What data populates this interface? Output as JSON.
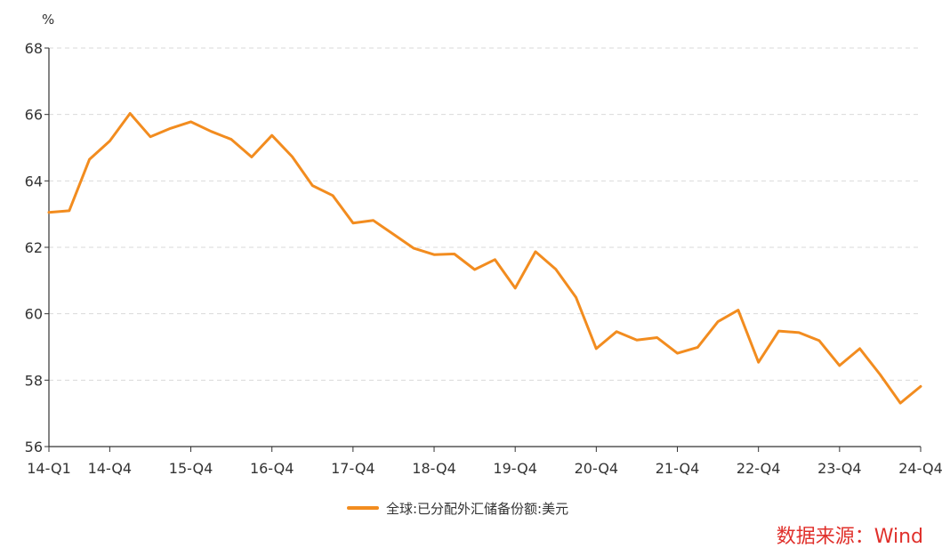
{
  "chart_data": {
    "type": "line",
    "y_unit": "%",
    "ylim": [
      56,
      68
    ],
    "y_ticks": [
      56,
      58,
      60,
      62,
      64,
      66,
      68
    ],
    "x_tick_labels": [
      "14-Q1",
      "14-Q4",
      "15-Q4",
      "16-Q4",
      "17-Q4",
      "18-Q4",
      "19-Q4",
      "20-Q4",
      "21-Q4",
      "22-Q4",
      "23-Q4",
      "24-Q4"
    ],
    "x_tick_indices": [
      0,
      3,
      7,
      11,
      15,
      19,
      23,
      27,
      31,
      35,
      39,
      43
    ],
    "x": [
      "14-Q1",
      "14-Q2",
      "14-Q3",
      "14-Q4",
      "15-Q1",
      "15-Q2",
      "15-Q3",
      "15-Q4",
      "16-Q1",
      "16-Q2",
      "16-Q3",
      "16-Q4",
      "17-Q1",
      "17-Q2",
      "17-Q3",
      "17-Q4",
      "18-Q1",
      "18-Q2",
      "18-Q3",
      "18-Q4",
      "19-Q1",
      "19-Q2",
      "19-Q3",
      "19-Q4",
      "20-Q1",
      "20-Q2",
      "20-Q3",
      "20-Q4",
      "21-Q1",
      "21-Q2",
      "21-Q3",
      "21-Q4",
      "22-Q1",
      "22-Q2",
      "22-Q3",
      "22-Q4",
      "23-Q1",
      "23-Q2",
      "23-Q3",
      "23-Q4",
      "24-Q1",
      "24-Q2",
      "24-Q3",
      "24-Q4"
    ],
    "series": [
      {
        "name": "全球:已分配外汇储备份额:美元",
        "color": "#f28c1f",
        "values": [
          63.05,
          63.1,
          64.65,
          65.2,
          66.03,
          65.33,
          65.58,
          65.78,
          65.49,
          65.25,
          64.72,
          65.37,
          64.73,
          63.86,
          63.56,
          62.73,
          62.81,
          62.39,
          61.97,
          61.78,
          61.8,
          61.33,
          61.63,
          60.77,
          61.87,
          61.34,
          60.49,
          58.95,
          59.46,
          59.21,
          59.28,
          58.81,
          58.99,
          59.76,
          60.11,
          58.54,
          59.48,
          59.43,
          59.19,
          58.44,
          58.95,
          58.17,
          57.31,
          57.81
        ]
      }
    ],
    "grid": "horizontal-dashed",
    "legend_position": "bottom-center"
  },
  "source": "数据来源：Wind"
}
